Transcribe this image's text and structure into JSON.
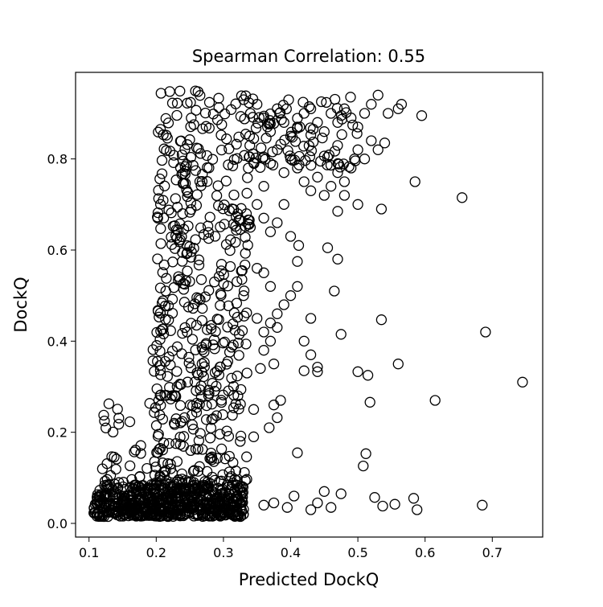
{
  "chart_data": {
    "type": "scatter",
    "title": "Spearman Correlation: 0.55",
    "xlabel": "Predicted DockQ",
    "ylabel": "DockQ",
    "xlim": [
      0.08,
      0.775
    ],
    "ylim": [
      -0.03,
      0.99
    ],
    "xticks": [
      0.1,
      0.2,
      0.3,
      0.4,
      0.5,
      0.6,
      0.7
    ],
    "xtick_labels": [
      "0.1",
      "0.2",
      "0.3",
      "0.4",
      "0.5",
      "0.6",
      "0.7"
    ],
    "yticks": [
      0.0,
      0.2,
      0.4,
      0.6,
      0.8
    ],
    "ytick_labels": [
      "0.0",
      "0.2",
      "0.4",
      "0.6",
      "0.8"
    ],
    "grid": false,
    "marker": "open-circle",
    "marker_color": "#000000",
    "points": [
      [
        0.745,
        0.31
      ],
      [
        0.69,
        0.42
      ],
      [
        0.685,
        0.04
      ],
      [
        0.655,
        0.715
      ],
      [
        0.615,
        0.27
      ],
      [
        0.595,
        0.895
      ],
      [
        0.588,
        0.03
      ],
      [
        0.585,
        0.75
      ],
      [
        0.583,
        0.055
      ],
      [
        0.56,
        0.35
      ],
      [
        0.555,
        0.042
      ],
      [
        0.54,
        0.835
      ],
      [
        0.535,
        0.69
      ],
      [
        0.535,
        0.447
      ],
      [
        0.537,
        0.038
      ],
      [
        0.525,
        0.057
      ],
      [
        0.515,
        0.325
      ],
      [
        0.518,
        0.266
      ],
      [
        0.512,
        0.153
      ],
      [
        0.508,
        0.126
      ],
      [
        0.5,
        0.333
      ],
      [
        0.5,
        0.7
      ],
      [
        0.495,
        0.8
      ],
      [
        0.475,
        0.415
      ],
      [
        0.47,
        0.58
      ],
      [
        0.475,
        0.065
      ],
      [
        0.48,
        0.72
      ],
      [
        0.47,
        0.685
      ],
      [
        0.465,
        0.51
      ],
      [
        0.455,
        0.605
      ],
      [
        0.45,
        0.07
      ],
      [
        0.44,
        0.343
      ],
      [
        0.44,
        0.333
      ],
      [
        0.43,
        0.45
      ],
      [
        0.42,
        0.335
      ],
      [
        0.41,
        0.155
      ],
      [
        0.41,
        0.575
      ],
      [
        0.412,
        0.61
      ],
      [
        0.405,
        0.06
      ],
      [
        0.385,
        0.27
      ],
      [
        0.38,
        0.232
      ],
      [
        0.375,
        0.26
      ],
      [
        0.375,
        0.35
      ],
      [
        0.37,
        0.44
      ],
      [
        0.368,
        0.21
      ],
      [
        0.36,
        0.38
      ],
      [
        0.355,
        0.34
      ],
      [
        0.35,
        0.56
      ],
      [
        0.345,
        0.25
      ],
      [
        0.345,
        0.19
      ],
      [
        0.34,
        0.65
      ],
      [
        0.335,
        0.33
      ],
      [
        0.33,
        0.5
      ],
      [
        0.325,
        0.18
      ],
      [
        0.46,
        0.035
      ],
      [
        0.43,
        0.03
      ],
      [
        0.395,
        0.035
      ],
      [
        0.375,
        0.045
      ],
      [
        0.36,
        0.04
      ],
      [
        0.44,
        0.045
      ],
      [
        0.51,
        0.9
      ],
      [
        0.52,
        0.92
      ],
      [
        0.53,
        0.94
      ],
      [
        0.545,
        0.9
      ],
      [
        0.56,
        0.91
      ],
      [
        0.565,
        0.92
      ],
      [
        0.5,
        0.87
      ],
      [
        0.49,
        0.89
      ],
      [
        0.48,
        0.91
      ],
      [
        0.47,
        0.88
      ],
      [
        0.46,
        0.9
      ],
      [
        0.45,
        0.86
      ],
      [
        0.44,
        0.88
      ],
      [
        0.43,
        0.91
      ],
      [
        0.42,
        0.9
      ],
      [
        0.41,
        0.87
      ],
      [
        0.4,
        0.85
      ],
      [
        0.39,
        0.88
      ],
      [
        0.38,
        0.91
      ],
      [
        0.37,
        0.86
      ],
      [
        0.36,
        0.89
      ],
      [
        0.35,
        0.92
      ],
      [
        0.34,
        0.9
      ],
      [
        0.33,
        0.93
      ],
      [
        0.42,
        0.75
      ],
      [
        0.43,
        0.73
      ],
      [
        0.44,
        0.76
      ],
      [
        0.45,
        0.72
      ],
      [
        0.46,
        0.74
      ],
      [
        0.47,
        0.77
      ],
      [
        0.48,
        0.75
      ],
      [
        0.49,
        0.78
      ],
      [
        0.5,
        0.82
      ],
      [
        0.51,
        0.8
      ],
      [
        0.52,
        0.84
      ],
      [
        0.53,
        0.82
      ],
      [
        0.4,
        0.8
      ],
      [
        0.41,
        0.78
      ],
      [
        0.39,
        0.77
      ],
      [
        0.38,
        0.82
      ],
      [
        0.37,
        0.79
      ],
      [
        0.36,
        0.74
      ],
      [
        0.35,
        0.7
      ],
      [
        0.36,
        0.67
      ],
      [
        0.37,
        0.64
      ],
      [
        0.38,
        0.66
      ],
      [
        0.39,
        0.7
      ],
      [
        0.4,
        0.63
      ],
      [
        0.41,
        0.52
      ],
      [
        0.4,
        0.5
      ],
      [
        0.39,
        0.48
      ],
      [
        0.38,
        0.46
      ],
      [
        0.37,
        0.52
      ],
      [
        0.36,
        0.55
      ],
      [
        0.35,
        0.45
      ],
      [
        0.36,
        0.42
      ],
      [
        0.37,
        0.4
      ],
      [
        0.38,
        0.43
      ],
      [
        0.42,
        0.4
      ],
      [
        0.43,
        0.37
      ]
    ],
    "dense_regions": [
      {
        "x": [
          0.107,
          0.33
        ],
        "y": [
          0.015,
          0.085
        ],
        "count": 620,
        "seed": 11
      },
      {
        "x": [
          0.195,
          0.335
        ],
        "y": [
          0.085,
          0.42
        ],
        "count": 220,
        "seed": 23
      },
      {
        "x": [
          0.2,
          0.34
        ],
        "y": [
          0.42,
          0.63
        ],
        "count": 110,
        "seed": 37
      },
      {
        "x": [
          0.2,
          0.34
        ],
        "y": [
          0.63,
          0.95
        ],
        "count": 160,
        "seed": 41
      },
      {
        "x": [
          0.33,
          0.5
        ],
        "y": [
          0.78,
          0.94
        ],
        "count": 90,
        "seed": 53
      },
      {
        "x": [
          0.12,
          0.2
        ],
        "y": [
          0.085,
          0.3
        ],
        "count": 35,
        "seed": 67
      }
    ]
  }
}
